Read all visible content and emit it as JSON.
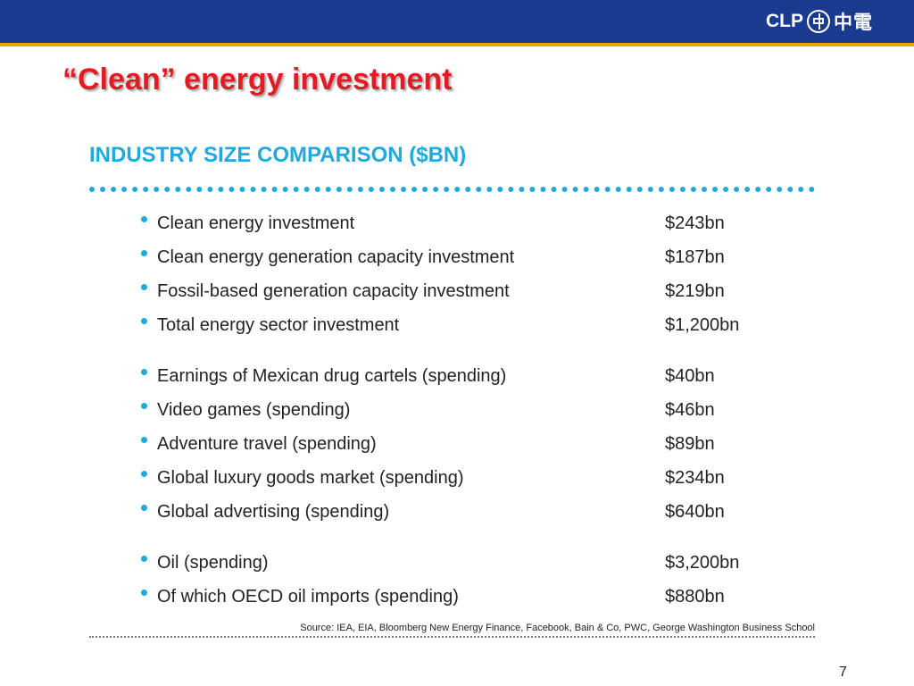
{
  "header": {
    "logo_text": "CLP",
    "logo_cn": "中電"
  },
  "slide": {
    "title": "“Clean” energy investment",
    "heading": "INDUSTRY SIZE COMPARISON ($BN)",
    "items": [
      {
        "label": "Clean energy investment",
        "value": "$243bn"
      },
      {
        "label": "Clean energy generation capacity investment",
        "value": "$187bn"
      },
      {
        "label": "Fossil-based generation capacity investment",
        "value": "$219bn"
      },
      {
        "label": "Total energy sector investment",
        "value": "$1,200bn"
      },
      {
        "label": "Earnings of Mexican drug cartels (spending)",
        "value": "$40bn"
      },
      {
        "label": "Video games (spending)",
        "value": "$46bn"
      },
      {
        "label": "Adventure travel (spending)",
        "value": "$89bn"
      },
      {
        "label": "Global luxury goods market (spending)",
        "value": "$234bn"
      },
      {
        "label": "Global advertising (spending)",
        "value": "$640bn"
      },
      {
        "label": "Oil (spending)",
        "value": "$3,200bn"
      },
      {
        "label": "Of which OECD oil imports (spending)",
        "value": "$880bn"
      }
    ],
    "source": "Source: IEA, EIA, Bloomberg New Energy Finance, Facebook, Bain & Co, PWC, George Washington Business School",
    "page_number": "7"
  },
  "colors": {
    "header_bg": "#1a3a8f",
    "header_accent": "#f0a000",
    "title": "#e31b23",
    "heading": "#21a8dc"
  }
}
